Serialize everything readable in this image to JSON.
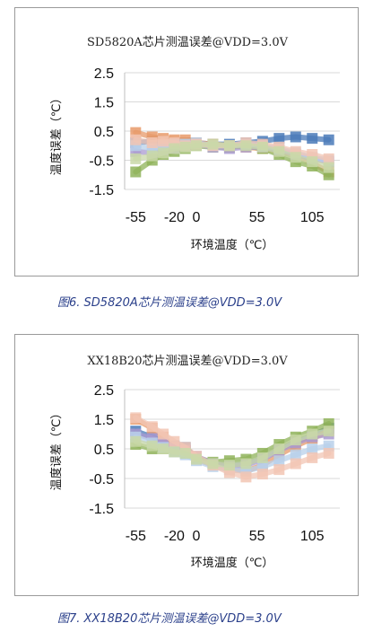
{
  "chart_data": [
    {
      "type": "line",
      "title": "SD5820A芯片测温误差@VDD=3.0V",
      "xlabel": "环境温度（℃）",
      "ylabel": "温度误差（℃）",
      "x": [
        -55,
        -40,
        -30,
        -20,
        -10,
        0,
        15,
        30,
        45,
        60,
        75,
        90,
        105,
        120
      ],
      "x_ticks": [
        "-55",
        "-20",
        "0",
        "55",
        "105"
      ],
      "x_tick_values": [
        -55,
        -20,
        0,
        55,
        105
      ],
      "y_ticks": [
        "2.5",
        "1.5",
        "0.5",
        "-0.5",
        "-1.5"
      ],
      "y_tick_values": [
        2.5,
        1.5,
        0.5,
        -0.5,
        -1.5
      ],
      "ylim": [
        -1.5,
        2.5
      ],
      "grid": true,
      "series": [
        {
          "color": "#4a7ab8",
          "values": [
            0.1,
            0.15,
            0.05,
            0.1,
            0.1,
            0.1,
            0.05,
            0.05,
            0.1,
            0.15,
            0.25,
            0.3,
            0.25,
            0.2
          ]
        },
        {
          "color": "#e79a6a",
          "values": [
            0.45,
            0.3,
            0.25,
            0.2,
            0.2,
            0.1,
            0.05,
            0.0,
            -0.05,
            -0.1,
            -0.2,
            -0.35,
            -0.6,
            -0.9
          ]
        },
        {
          "color": "#8fb35a",
          "values": [
            -0.9,
            -0.5,
            -0.3,
            -0.2,
            -0.1,
            0.0,
            -0.05,
            -0.05,
            0.0,
            -0.1,
            -0.3,
            -0.55,
            -0.7,
            -1.0
          ]
        },
        {
          "color": "#a99ad0",
          "values": [
            -0.2,
            -0.25,
            -0.15,
            -0.1,
            0.0,
            0.05,
            -0.05,
            -0.1,
            -0.05,
            -0.05,
            -0.15,
            -0.3,
            -0.45,
            -0.55
          ]
        },
        {
          "color": "#b8d0ea",
          "values": [
            0.0,
            -0.1,
            0.0,
            0.05,
            0.05,
            0.1,
            0.0,
            0.0,
            0.05,
            0.0,
            -0.1,
            -0.25,
            -0.4,
            -0.5
          ]
        },
        {
          "color": "#f2c6b4",
          "values": [
            0.2,
            0.1,
            0.15,
            0.1,
            0.0,
            0.05,
            0.0,
            0.0,
            0.1,
            0.05,
            -0.05,
            -0.2,
            -0.3,
            -0.45
          ]
        },
        {
          "color": "#c9d8a8",
          "values": [
            -0.45,
            -0.35,
            -0.25,
            -0.1,
            -0.05,
            0.0,
            0.05,
            0.0,
            0.0,
            -0.05,
            -0.2,
            -0.4,
            -0.55,
            -0.75
          ]
        }
      ]
    },
    {
      "type": "line",
      "title": "XX18B20芯片测温误差@VDD=3.0V",
      "xlabel": "环境温度（℃）",
      "ylabel": "温度误差（℃）",
      "x": [
        -55,
        -40,
        -30,
        -20,
        -10,
        0,
        15,
        30,
        45,
        60,
        75,
        90,
        105,
        120
      ],
      "x_ticks": [
        "-55",
        "-20",
        "0",
        "55",
        "105"
      ],
      "x_tick_values": [
        -55,
        -20,
        0,
        55,
        105
      ],
      "y_ticks": [
        "2.5",
        "1.5",
        "0.5",
        "-0.5",
        "-1.5"
      ],
      "y_tick_values": [
        2.5,
        1.5,
        0.5,
        -0.5,
        -1.5
      ],
      "ylim": [
        -1.5,
        2.5
      ],
      "grid": true,
      "series": [
        {
          "color": "#4a7ab8",
          "values": [
            1.1,
            0.9,
            0.75,
            0.6,
            0.55,
            0.2,
            0.0,
            -0.05,
            0.0,
            0.2,
            0.5,
            0.75,
            0.95,
            1.2
          ]
        },
        {
          "color": "#e79a6a",
          "values": [
            1.5,
            1.2,
            0.9,
            0.55,
            0.45,
            0.15,
            -0.05,
            -0.2,
            -0.25,
            -0.05,
            0.3,
            0.6,
            0.85,
            1.1
          ]
        },
        {
          "color": "#8fb35a",
          "values": [
            0.65,
            0.5,
            0.5,
            0.4,
            0.35,
            0.2,
            0.05,
            0.1,
            0.15,
            0.35,
            0.65,
            0.9,
            1.1,
            1.35
          ]
        },
        {
          "color": "#a99ad0",
          "values": [
            1.0,
            0.85,
            0.7,
            0.55,
            0.45,
            0.25,
            0.0,
            -0.1,
            -0.05,
            0.15,
            0.45,
            0.7,
            0.9,
            1.0
          ]
        },
        {
          "color": "#b8d0ea",
          "values": [
            0.9,
            0.7,
            0.55,
            0.4,
            0.3,
            0.1,
            -0.1,
            -0.2,
            -0.25,
            -0.1,
            0.1,
            0.3,
            0.5,
            0.6
          ]
        },
        {
          "color": "#f2c6b4",
          "values": [
            1.55,
            1.25,
            1.0,
            0.75,
            0.55,
            0.25,
            -0.05,
            -0.3,
            -0.45,
            -0.35,
            -0.2,
            0.0,
            0.2,
            0.35
          ]
        },
        {
          "color": "#c9d8a8",
          "values": [
            0.75,
            0.6,
            0.5,
            0.4,
            0.35,
            0.15,
            0.0,
            -0.05,
            0.0,
            0.2,
            0.5,
            0.8,
            1.0,
            1.1
          ]
        }
      ]
    }
  ],
  "captions": {
    "fig6": "图6. SD5820A芯片测温误差@VDD=3.0V",
    "fig7": "图7. XX18B20芯片测温误差@VDD=3.0V"
  }
}
